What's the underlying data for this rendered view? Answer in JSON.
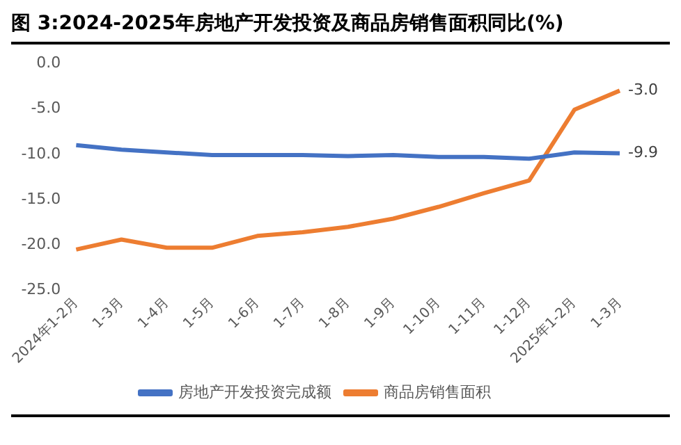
{
  "chart_data": {
    "type": "line",
    "title": "图 3:2024-2025年房地产开发投资及商品房销售面积同比(%)",
    "categories": [
      "2024年1-2月",
      "1-3月",
      "1-4月",
      "1-5月",
      "1-6月",
      "1-7月",
      "1-8月",
      "1-9月",
      "1-10月",
      "1-11月",
      "1-12月",
      "2025年1-2月",
      "1-3月"
    ],
    "series": [
      {
        "name": "房地产开发投资完成额",
        "color": "#4472c4",
        "values": [
          -9.0,
          -9.5,
          -9.8,
          -10.1,
          -10.1,
          -10.1,
          -10.2,
          -10.1,
          -10.3,
          -10.3,
          -10.5,
          -9.8,
          -9.9
        ],
        "value_labels": [
          null,
          null,
          null,
          null,
          null,
          null,
          null,
          null,
          null,
          null,
          null,
          null,
          "-9.9"
        ]
      },
      {
        "name": "商品房销售面积",
        "color": "#ed7d31",
        "values": [
          -20.5,
          -19.4,
          -20.3,
          -20.3,
          -19.0,
          -18.6,
          -18.0,
          -17.1,
          -15.8,
          -14.3,
          -12.9,
          -5.1,
          -3.0
        ],
        "value_labels": [
          null,
          null,
          null,
          null,
          null,
          null,
          null,
          null,
          null,
          null,
          null,
          null,
          "-3.0"
        ]
      }
    ],
    "ylim": [
      -25,
      0
    ],
    "yticks": [
      {
        "value": -25,
        "label": "-25.0"
      },
      {
        "value": -20,
        "label": "-20.0"
      },
      {
        "value": -15,
        "label": "-15.0"
      },
      {
        "value": -10,
        "label": "-10.0"
      },
      {
        "value": -5,
        "label": "-5.0"
      },
      {
        "value": 0,
        "label": "0.0"
      }
    ],
    "legend": "bottom",
    "marker": "none",
    "line_style": "solid",
    "grid": false
  }
}
